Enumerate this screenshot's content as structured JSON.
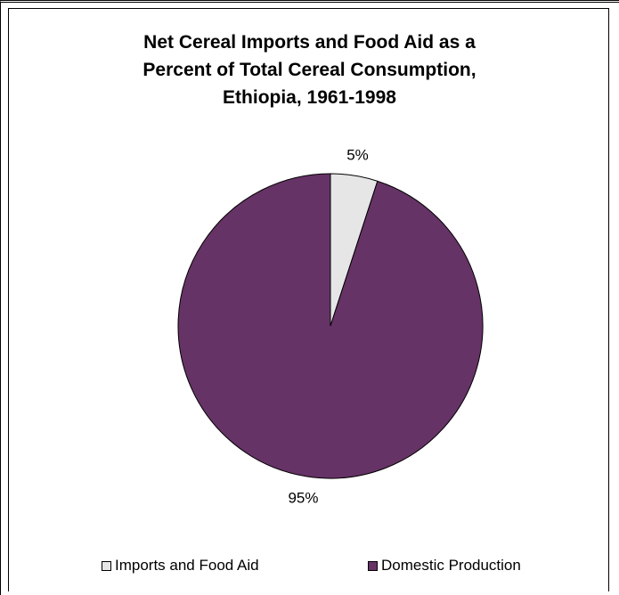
{
  "chart_data": {
    "type": "pie",
    "title": "Net Cereal Imports and Food Aid as a Percent of Total Cereal Consumption, Ethiopia, 1961-1998",
    "title_lines": [
      "Net Cereal Imports and Food Aid as a",
      "Percent of Total Cereal Consumption,",
      "Ethiopia, 1961-1998"
    ],
    "slices": [
      {
        "name": "Imports and Food Aid",
        "value": 5,
        "label": "5%",
        "color": "#E6E6E6"
      },
      {
        "name": "Domestic Production",
        "value": 95,
        "label": "95%",
        "color": "#663366"
      }
    ],
    "legend_position": "bottom",
    "start_angle": "12 o'clock",
    "direction": "clockwise"
  }
}
